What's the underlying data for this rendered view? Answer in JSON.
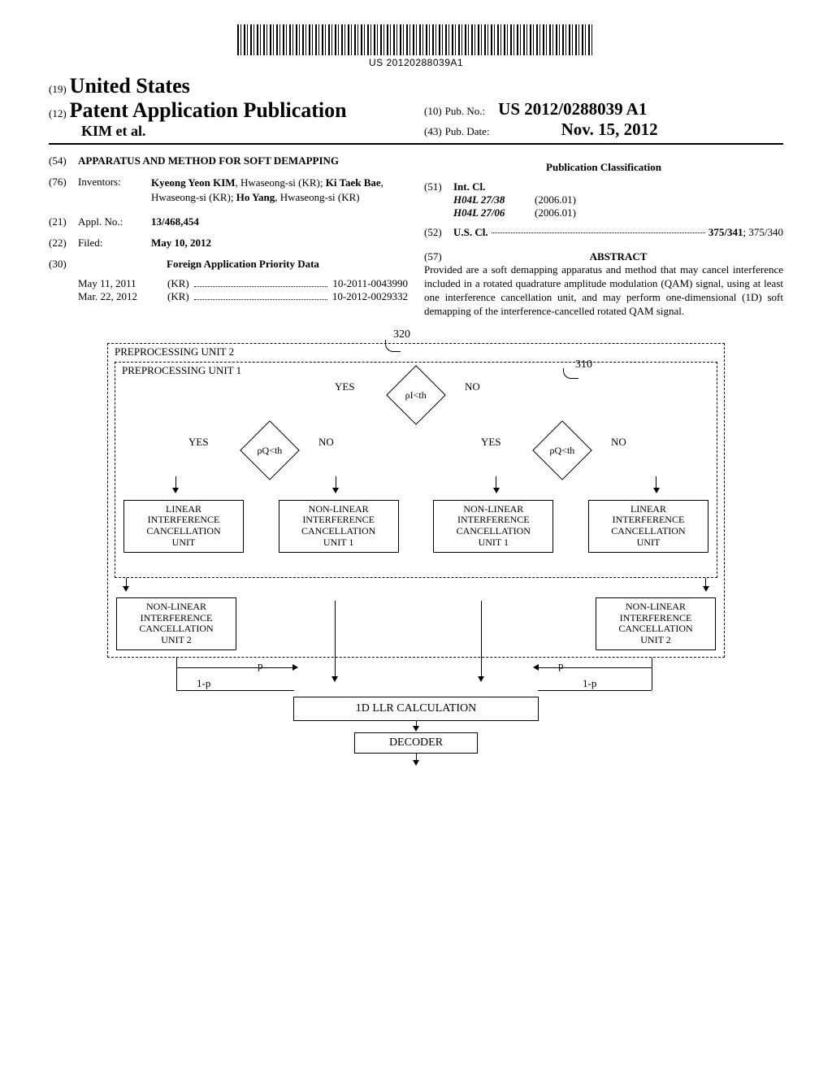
{
  "barcode": {
    "text": "US 20120288039A1"
  },
  "header": {
    "code19": "(19)",
    "country": "United States",
    "code12": "(12)",
    "pub_type": "Patent Application Publication",
    "authors_line": "KIM et al.",
    "code10": "(10)",
    "pub_no_label": "Pub. No.:",
    "pub_no": "US 2012/0288039 A1",
    "code43": "(43)",
    "pub_date_label": "Pub. Date:",
    "pub_date": "Nov. 15, 2012"
  },
  "biblio": {
    "code54": "(54)",
    "title": "APPARATUS AND METHOD FOR SOFT DEMAPPING",
    "code76": "(76)",
    "inventors_label": "Inventors:",
    "inventors_html": "Kyeong Yeon KIM, Hwaseong-si (KR); Ki Taek Bae, Hwaseong-si (KR); Ho Yang, Hwaseong-si (KR)",
    "inv1_name": "Kyeong Yeon KIM",
    "inv1_loc": ", Hwaseong-si (KR); ",
    "inv2_name": "Ki Taek Bae",
    "inv2_loc": ", Hwaseong-si (KR); ",
    "inv3_name": "Ho Yang",
    "inv3_loc": ", Hwaseong-si (KR)",
    "code21": "(21)",
    "appl_label": "Appl. No.:",
    "appl_no": "13/468,454",
    "code22": "(22)",
    "filed_label": "Filed:",
    "filed_date": "May 10, 2012",
    "code30": "(30)",
    "foreign_title": "Foreign Application Priority Data",
    "foreign": [
      {
        "date": "May 11, 2011",
        "country": "(KR)",
        "num": "10-2011-0043990"
      },
      {
        "date": "Mar. 22, 2012",
        "country": "(KR)",
        "num": "10-2012-0029332"
      }
    ],
    "classification_title": "Publication Classification",
    "code51": "(51)",
    "intcl_label": "Int. Cl.",
    "intcl": [
      {
        "code": "H04L 27/38",
        "year": "(2006.01)"
      },
      {
        "code": "H04L 27/06",
        "year": "(2006.01)"
      }
    ],
    "code52": "(52)",
    "uscl_label": "U.S. Cl.",
    "uscl_values": "375/341; 375/340",
    "uscl_bold": "375/341",
    "uscl_rest": "; 375/340",
    "code57": "(57)",
    "abstract_label": "ABSTRACT",
    "abstract_text": "Provided are a soft demapping apparatus and method that may cancel interference included in a rotated quadrature amplitude modulation (QAM) signal, using at least one interference cancellation unit, and may perform one-dimensional (1D) soft demapping of the interference-cancelled rotated QAM signal."
  },
  "diagram": {
    "ref320": "320",
    "ref310": "310",
    "outer_label": "PREPROCESSING UNIT 2",
    "inner_label": "PREPROCESSING UNIT 1",
    "diamond_top": "ρI<th",
    "diamond_left": "ρQ<th",
    "diamond_right": "ρQ<th",
    "yes": "YES",
    "no": "NO",
    "box_linear": "LINEAR\nINTERFERENCE\nCANCELLATION\nUNIT",
    "box_nonlinear1": "NON-LINEAR\nINTERFERENCE\nCANCELLATION\nUNIT 1",
    "box_nonlinear2": "NON-LINEAR\nINTERFERENCE\nCANCELLATION\nUNIT 2",
    "llr_box": "1D LLR CALCULATION",
    "decoder_box": "DECODER",
    "p_label": "p",
    "one_minus_p": "1-p"
  }
}
